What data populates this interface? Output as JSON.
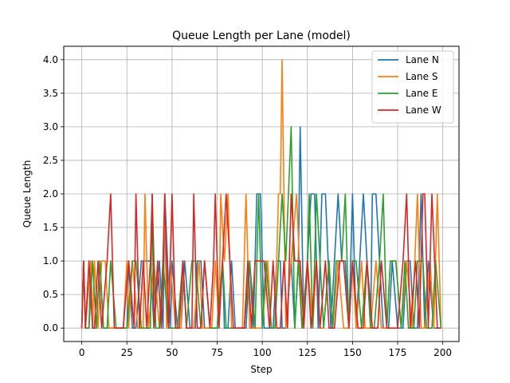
{
  "chart_data": {
    "type": "line",
    "title": "Queue Length per Lane (model)",
    "xlabel": "Step",
    "ylabel": "Queue Length",
    "xlim": [
      -10,
      209
    ],
    "ylim": [
      -0.2,
      4.2
    ],
    "xticks": [
      0,
      25,
      50,
      75,
      100,
      125,
      150,
      175,
      200
    ],
    "yticks": [
      0.0,
      0.5,
      1.0,
      1.5,
      2.0,
      2.5,
      3.0,
      3.5,
      4.0
    ],
    "xtick_labels": [
      "0",
      "25",
      "50",
      "75",
      "100",
      "125",
      "150",
      "175",
      "200"
    ],
    "ytick_labels": [
      "0.0",
      "0.5",
      "1.0",
      "1.5",
      "2.0",
      "2.5",
      "3.0",
      "3.5",
      "4.0"
    ],
    "grid": true,
    "legend_position": "top-right",
    "series": [
      {
        "name": "Lane N",
        "color": "#1f77b4",
        "x": [
          0,
          1,
          2,
          4,
          5,
          6,
          8,
          10,
          12,
          17,
          25,
          26,
          28,
          30,
          33,
          38,
          40,
          43,
          45,
          46,
          49,
          50,
          53,
          55,
          57,
          60,
          63,
          64,
          66,
          68,
          70,
          72,
          75,
          78,
          79,
          81,
          83,
          85,
          88,
          91,
          93,
          95,
          97,
          99,
          101,
          103,
          106,
          108,
          110,
          111,
          113,
          116,
          118,
          120,
          121,
          123,
          125,
          127,
          129,
          131,
          133,
          135,
          138,
          140,
          142,
          144,
          146,
          148,
          150,
          152,
          154,
          156,
          158,
          160,
          161,
          163,
          165,
          167,
          170,
          172,
          175,
          178,
          180,
          182,
          184,
          186,
          188,
          190,
          192,
          195,
          199
        ],
        "y": [
          0,
          1,
          0,
          0,
          1,
          0,
          0,
          1,
          0,
          0,
          0,
          1,
          0,
          0,
          1,
          1,
          0,
          1,
          0,
          2,
          0,
          1,
          0,
          0,
          1,
          0,
          0,
          1,
          1,
          0,
          0,
          0,
          0,
          1,
          0,
          0,
          1,
          0,
          0,
          0,
          1,
          0,
          2,
          2,
          0,
          0,
          0,
          1,
          1,
          0,
          0,
          1,
          0,
          1,
          3,
          0,
          1,
          2,
          2,
          0,
          2,
          2,
          0,
          1,
          2,
          1,
          1,
          0,
          2,
          0,
          1,
          2,
          1,
          0,
          2,
          2,
          1,
          0,
          0,
          1,
          0,
          0,
          1,
          1,
          0,
          0,
          2,
          0,
          1,
          0,
          0
        ]
      },
      {
        "name": "Lane S",
        "color": "#ff7f0e",
        "x": [
          0,
          1,
          2,
          5,
          6,
          7,
          9,
          11,
          13,
          15,
          17,
          20,
          23,
          25,
          26,
          28,
          31,
          34,
          35,
          37,
          40,
          43,
          45,
          46,
          47,
          49,
          52,
          55,
          56,
          58,
          60,
          62,
          65,
          67,
          70,
          72,
          74,
          76,
          77,
          79,
          81,
          83,
          85,
          87,
          89,
          91,
          93,
          95,
          97,
          100,
          103,
          105,
          107,
          109,
          110,
          111,
          113,
          116,
          119,
          122,
          125,
          128,
          130,
          132,
          134,
          137,
          139,
          142,
          145,
          148,
          150,
          152,
          155,
          157,
          160,
          163,
          166,
          169,
          171,
          174,
          177,
          180,
          183,
          186,
          188,
          190,
          193,
          195,
          197,
          199
        ],
        "y": [
          0,
          1,
          0,
          1,
          0,
          1,
          0,
          1,
          1,
          0,
          0,
          0,
          0,
          1,
          0,
          1,
          0,
          0,
          2,
          0,
          1,
          0,
          1,
          2,
          0,
          1,
          0,
          0,
          1,
          0,
          0,
          0,
          1,
          0,
          0,
          0,
          1,
          0,
          2,
          1,
          2,
          0,
          0,
          0,
          0,
          2,
          0,
          0,
          0,
          0,
          1,
          0,
          0,
          2,
          2,
          4,
          0,
          1,
          2,
          0,
          1,
          0,
          1,
          0,
          0,
          1,
          0,
          1,
          0,
          0,
          1,
          0,
          1,
          0,
          0,
          1,
          0,
          0,
          1,
          1,
          0,
          1,
          0,
          2,
          0,
          0,
          1,
          0,
          2,
          0
        ]
      },
      {
        "name": "Lane E",
        "color": "#2ca02c",
        "x": [
          0,
          1,
          2,
          4,
          6,
          8,
          10,
          12,
          14,
          16,
          19,
          22,
          25,
          28,
          30,
          33,
          35,
          38,
          39,
          41,
          43,
          45,
          48,
          50,
          53,
          56,
          58,
          61,
          63,
          66,
          68,
          71,
          73,
          75,
          78,
          80,
          82,
          84,
          87,
          90,
          93,
          96,
          98,
          100,
          102,
          105,
          107,
          109,
          111,
          113,
          116,
          118,
          120,
          122,
          125,
          126,
          128,
          130,
          132,
          134,
          137,
          139,
          141,
          144,
          146,
          148,
          150,
          152,
          155,
          158,
          160,
          162,
          165,
          167,
          169,
          171,
          174,
          177,
          179,
          181,
          184,
          186,
          189,
          191,
          194,
          196,
          199
        ],
        "y": [
          0,
          1,
          0,
          0,
          1,
          0,
          1,
          0,
          0,
          1,
          0,
          0,
          0,
          1,
          1,
          0,
          0,
          0,
          2,
          0,
          0,
          1,
          0,
          0,
          0,
          1,
          0,
          1,
          1,
          0,
          1,
          0,
          0,
          0,
          1,
          0,
          0,
          0,
          0,
          0,
          1,
          0,
          2,
          0,
          1,
          0,
          0,
          1,
          2,
          1,
          3,
          0,
          1,
          0,
          1,
          2,
          0,
          2,
          1,
          0,
          1,
          0,
          1,
          1,
          2,
          0,
          1,
          1,
          0,
          1,
          0,
          0,
          1,
          2,
          0,
          1,
          1,
          0,
          1,
          0,
          0,
          1,
          1,
          0,
          0,
          1,
          0
        ]
      },
      {
        "name": "Lane W",
        "color": "#d62728",
        "x": [
          0,
          1,
          2,
          4,
          6,
          7,
          9,
          11,
          14,
          16,
          18,
          21,
          23,
          26,
          29,
          30,
          32,
          34,
          36,
          38,
          39,
          40,
          42,
          44,
          46,
          48,
          50,
          52,
          54,
          56,
          58,
          61,
          62,
          64,
          66,
          68,
          71,
          73,
          74,
          76,
          78,
          80,
          82,
          84,
          87,
          90,
          92,
          94,
          96,
          98,
          101,
          104,
          106,
          108,
          110,
          112,
          114,
          116,
          118,
          121,
          123,
          125,
          127,
          130,
          132,
          135,
          137,
          140,
          143,
          145,
          148,
          150,
          153,
          156,
          158,
          161,
          164,
          166,
          169,
          172,
          175,
          178,
          180,
          182,
          185,
          187,
          189,
          190,
          192,
          194,
          197,
          199
        ],
        "y": [
          0,
          1,
          0,
          1,
          0,
          0,
          1,
          0,
          1,
          2,
          0,
          0,
          0,
          1,
          0,
          2,
          0,
          1,
          0,
          1,
          2,
          0,
          1,
          0,
          2,
          0,
          2,
          0,
          0,
          1,
          0,
          0,
          2,
          0,
          0,
          1,
          0,
          1,
          2,
          0,
          1,
          2,
          1,
          0,
          0,
          0,
          1,
          0,
          1,
          1,
          1,
          0,
          1,
          0,
          0,
          1,
          0,
          2,
          1,
          1,
          0,
          1,
          0,
          1,
          0,
          1,
          0,
          0,
          1,
          1,
          0,
          1,
          0,
          0,
          1,
          0,
          0,
          1,
          0,
          0,
          0,
          1,
          2,
          0,
          1,
          0,
          2,
          2,
          0,
          2,
          0,
          0
        ]
      }
    ]
  }
}
